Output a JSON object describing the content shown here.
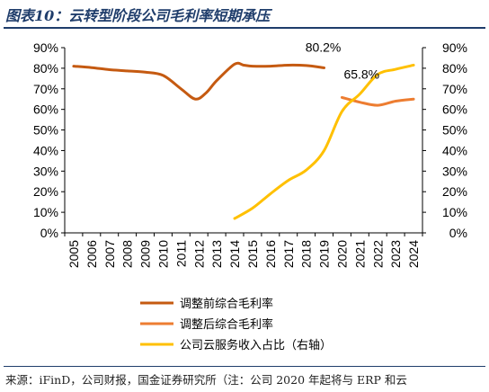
{
  "figure": {
    "title": "图表10：云转型阶段公司毛利率短期承压",
    "source": "来源：iFinD，公司财报，国金证券研究所（注：公司 2020 年起将与 ERP 和云"
  },
  "chart_data": {
    "type": "line",
    "x": [
      "2005",
      "2006",
      "2007",
      "2008",
      "2009",
      "2010",
      "2011",
      "2012",
      "2013",
      "2014",
      "2015",
      "2016",
      "2017",
      "2018",
      "2019",
      "2020",
      "2021",
      "2022",
      "2023",
      "2024"
    ],
    "y_left": {
      "min": 0,
      "max": 90,
      "step": 10,
      "tick_labels": [
        "0%",
        "10%",
        "20%",
        "30%",
        "40%",
        "50%",
        "60%",
        "70%",
        "80%",
        "90%"
      ]
    },
    "y_right": {
      "min": 0,
      "max": 90,
      "step": 10,
      "tick_labels": [
        "0%",
        "10%",
        "20%",
        "30%",
        "40%",
        "50%",
        "60%",
        "70%",
        "80%",
        "90%"
      ]
    },
    "series": [
      {
        "name": "调整前综合毛利率",
        "axis": "left",
        "color": "#c55a11",
        "points": [
          [
            2005,
            81.0
          ],
          [
            2006,
            80.3
          ],
          [
            2007,
            79.3
          ],
          [
            2008,
            78.7
          ],
          [
            2009,
            78.1
          ],
          [
            2010,
            76.5
          ],
          [
            2011,
            70.0
          ],
          [
            2011.8,
            65.0
          ],
          [
            2012.4,
            68.0
          ],
          [
            2013,
            74.0
          ],
          [
            2014,
            82.0
          ],
          [
            2014.5,
            81.5
          ],
          [
            2015,
            81.0
          ],
          [
            2016,
            81.0
          ],
          [
            2017,
            81.5
          ],
          [
            2018,
            81.3
          ],
          [
            2019,
            80.2
          ]
        ]
      },
      {
        "name": "调整后综合毛利率",
        "axis": "left",
        "color": "#ed7d31",
        "points": [
          [
            2020,
            65.8
          ],
          [
            2021,
            63.5
          ],
          [
            2022,
            62.0
          ],
          [
            2023,
            64.0
          ],
          [
            2024,
            65.0
          ]
        ]
      },
      {
        "name": "公司云服务收入占比（右轴）",
        "axis": "right",
        "color": "#ffc000",
        "points": [
          [
            2014,
            7.0
          ],
          [
            2015,
            12.0
          ],
          [
            2016,
            19.0
          ],
          [
            2017,
            25.5
          ],
          [
            2018,
            30.5
          ],
          [
            2019,
            40.0
          ],
          [
            2020,
            59.0
          ],
          [
            2021,
            67.5
          ],
          [
            2022,
            77.0
          ],
          [
            2023,
            79.5
          ],
          [
            2024,
            81.5
          ]
        ]
      }
    ],
    "annotations": [
      {
        "text": "80.2%",
        "x": 2019,
        "y": 80.2
      },
      {
        "text": "65.8%",
        "x": 2020,
        "y": 65.8
      }
    ],
    "legend_position": "bottom",
    "grid": false
  }
}
